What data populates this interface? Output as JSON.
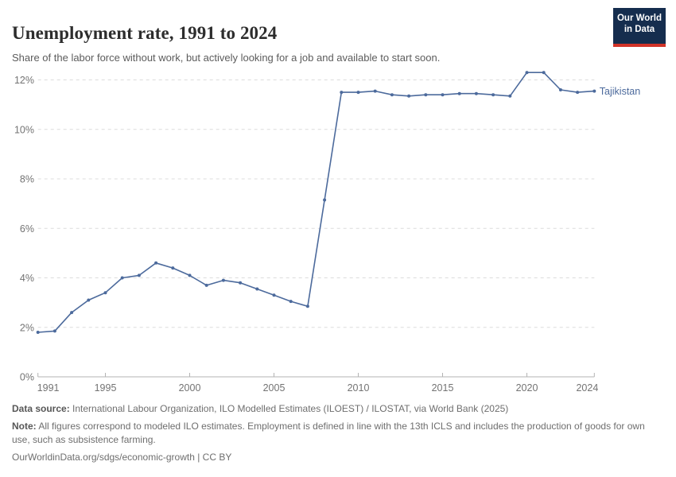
{
  "header": {
    "title": "Unemployment rate, 1991 to 2024",
    "subtitle": "Share of the labor force without work, but actively looking for a job and available to start soon."
  },
  "logo": {
    "line1": "Our World",
    "line2": "in Data",
    "bg_color": "#152d4e",
    "accent_color": "#d13328"
  },
  "chart_data": {
    "type": "line",
    "title": "Unemployment rate, 1991 to 2024",
    "x": [
      1991,
      1992,
      1993,
      1994,
      1995,
      1996,
      1997,
      1998,
      1999,
      2000,
      2001,
      2002,
      2003,
      2004,
      2005,
      2006,
      2007,
      2008,
      2009,
      2010,
      2011,
      2012,
      2013,
      2014,
      2015,
      2016,
      2017,
      2018,
      2019,
      2020,
      2021,
      2022,
      2023,
      2024
    ],
    "series": [
      {
        "name": "Tajikistan",
        "color": "#4c6a9c",
        "values": [
          1.8,
          1.85,
          2.6,
          3.1,
          3.4,
          4.0,
          4.1,
          4.6,
          4.4,
          4.1,
          3.7,
          3.9,
          3.8,
          3.55,
          3.3,
          3.05,
          2.85,
          7.15,
          11.5,
          11.5,
          11.55,
          11.4,
          11.35,
          11.4,
          11.4,
          11.45,
          11.45,
          11.4,
          11.35,
          12.3,
          12.3,
          11.6,
          11.5,
          11.55
        ]
      }
    ],
    "xlabel": "",
    "ylabel": "",
    "ylim": [
      0,
      12.65
    ],
    "yticks": [
      0,
      2,
      4,
      6,
      8,
      10,
      12
    ],
    "ytick_suffix": "%",
    "xticks": [
      1991,
      1995,
      2000,
      2005,
      2010,
      2015,
      2020,
      2024
    ],
    "grid": "horizontal-dashed",
    "grid_color": "#dcdcdc",
    "axis_color": "#b3b3b3",
    "tick_label_color": "#737373",
    "legend_position": "line-end-label"
  },
  "footer": {
    "datasource_label": "Data source:",
    "datasource_text": " International Labour Organization, ILO Modelled Estimates (ILOEST) / ILOSTAT, via World Bank (2025)",
    "note_label": "Note:",
    "note_text": " All figures correspond to modeled ILO estimates. Employment is defined in line with the 13th ICLS and includes the production of goods for own use, such as subsistence farming.",
    "url_text": "OurWorldinData.org/sdgs/economic-growth | CC BY"
  }
}
